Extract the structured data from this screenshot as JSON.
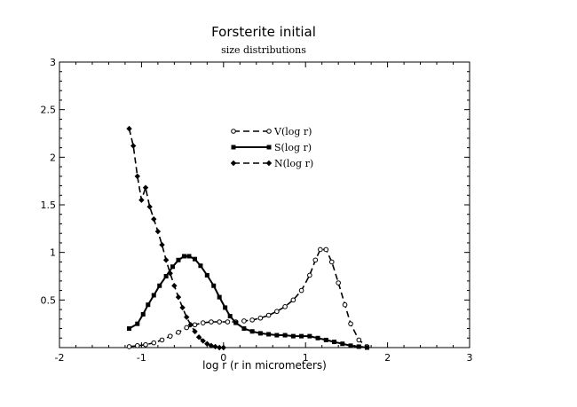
{
  "chart_data": {
    "type": "line",
    "title": "Forsterite initial",
    "subtitle": "size distributions",
    "xlabel": "log r (r in micrometers)",
    "ylabel": "",
    "xlim": [
      -2,
      3
    ],
    "ylim": [
      0,
      3
    ],
    "xticks": [
      "-2",
      "-1",
      "0",
      "1",
      "2",
      "3"
    ],
    "yticks": [
      "0.5",
      "1",
      "1.5",
      "2",
      "2.5",
      "3"
    ],
    "grid": false,
    "legend_position": "top-center",
    "series": [
      {
        "name": "V(log r)",
        "style": "dashed",
        "marker": "open-circle",
        "color": "#000000",
        "points": [
          [
            -1.15,
            0.01
          ],
          [
            -1.05,
            0.02
          ],
          [
            -0.95,
            0.03
          ],
          [
            -0.85,
            0.05
          ],
          [
            -0.75,
            0.08
          ],
          [
            -0.65,
            0.12
          ],
          [
            -0.55,
            0.16
          ],
          [
            -0.45,
            0.21
          ],
          [
            -0.35,
            0.24
          ],
          [
            -0.25,
            0.26
          ],
          [
            -0.15,
            0.27
          ],
          [
            -0.05,
            0.27
          ],
          [
            0.05,
            0.27
          ],
          [
            0.15,
            0.27
          ],
          [
            0.25,
            0.28
          ],
          [
            0.35,
            0.29
          ],
          [
            0.45,
            0.31
          ],
          [
            0.55,
            0.34
          ],
          [
            0.65,
            0.38
          ],
          [
            0.75,
            0.43
          ],
          [
            0.85,
            0.5
          ],
          [
            0.95,
            0.6
          ],
          [
            1.05,
            0.76
          ],
          [
            1.12,
            0.92
          ],
          [
            1.18,
            1.03
          ],
          [
            1.25,
            1.03
          ],
          [
            1.32,
            0.9
          ],
          [
            1.4,
            0.68
          ],
          [
            1.48,
            0.45
          ],
          [
            1.55,
            0.25
          ],
          [
            1.65,
            0.08
          ],
          [
            1.75,
            0.01
          ]
        ]
      },
      {
        "name": "S(log r)",
        "style": "solid",
        "marker": "filled-square",
        "color": "#000000",
        "points": [
          [
            -1.15,
            0.2
          ],
          [
            -1.05,
            0.25
          ],
          [
            -0.98,
            0.35
          ],
          [
            -0.92,
            0.45
          ],
          [
            -0.85,
            0.55
          ],
          [
            -0.78,
            0.65
          ],
          [
            -0.7,
            0.75
          ],
          [
            -0.62,
            0.85
          ],
          [
            -0.55,
            0.92
          ],
          [
            -0.48,
            0.96
          ],
          [
            -0.42,
            0.96
          ],
          [
            -0.35,
            0.93
          ],
          [
            -0.28,
            0.86
          ],
          [
            -0.2,
            0.76
          ],
          [
            -0.12,
            0.65
          ],
          [
            -0.05,
            0.53
          ],
          [
            0.02,
            0.42
          ],
          [
            0.08,
            0.33
          ],
          [
            0.15,
            0.26
          ],
          [
            0.25,
            0.2
          ],
          [
            0.35,
            0.17
          ],
          [
            0.45,
            0.15
          ],
          [
            0.55,
            0.14
          ],
          [
            0.65,
            0.13
          ],
          [
            0.75,
            0.13
          ],
          [
            0.85,
            0.12
          ],
          [
            0.95,
            0.12
          ],
          [
            1.05,
            0.12
          ],
          [
            1.15,
            0.1
          ],
          [
            1.25,
            0.08
          ],
          [
            1.35,
            0.06
          ],
          [
            1.45,
            0.04
          ],
          [
            1.55,
            0.02
          ],
          [
            1.65,
            0.01
          ],
          [
            1.75,
            0.0
          ]
        ]
      },
      {
        "name": "N(log r)",
        "style": "dashed",
        "marker": "filled-diamond",
        "color": "#000000",
        "points": [
          [
            -1.15,
            2.3
          ],
          [
            -1.1,
            2.12
          ],
          [
            -1.05,
            1.8
          ],
          [
            -1.0,
            1.55
          ],
          [
            -0.95,
            1.68
          ],
          [
            -0.9,
            1.48
          ],
          [
            -0.85,
            1.35
          ],
          [
            -0.8,
            1.22
          ],
          [
            -0.75,
            1.08
          ],
          [
            -0.7,
            0.92
          ],
          [
            -0.65,
            0.78
          ],
          [
            -0.6,
            0.65
          ],
          [
            -0.55,
            0.53
          ],
          [
            -0.5,
            0.42
          ],
          [
            -0.45,
            0.32
          ],
          [
            -0.4,
            0.24
          ],
          [
            -0.35,
            0.17
          ],
          [
            -0.3,
            0.11
          ],
          [
            -0.25,
            0.07
          ],
          [
            -0.2,
            0.04
          ],
          [
            -0.15,
            0.02
          ],
          [
            -0.1,
            0.01
          ],
          [
            -0.05,
            0.0
          ],
          [
            0.0,
            0.0
          ]
        ]
      }
    ]
  }
}
